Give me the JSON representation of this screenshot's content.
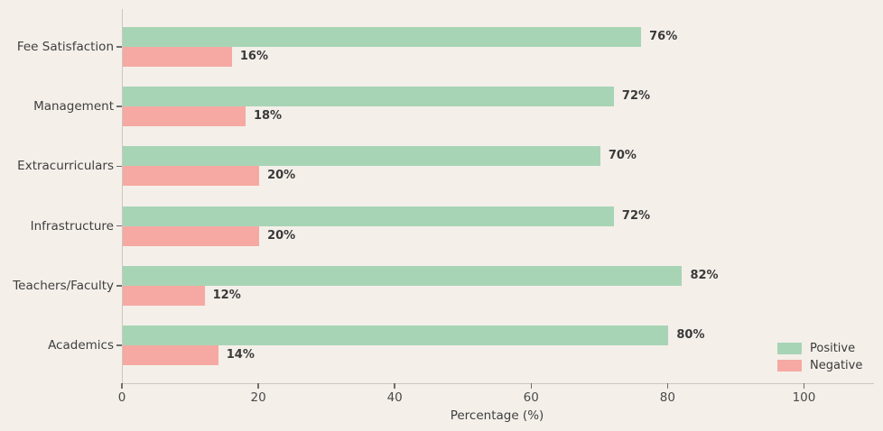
{
  "chart_data": {
    "type": "bar",
    "orientation": "horizontal",
    "title": "",
    "xlabel": "Percentage (%)",
    "ylabel": "",
    "categories": [
      "Fee Satisfaction",
      "Management",
      "Extracurriculars",
      "Infrastructure",
      "Teachers/Faculty",
      "Academics"
    ],
    "series": [
      {
        "name": "Positive",
        "color": "#a8d4b6",
        "values": [
          76,
          72,
          70,
          72,
          82,
          80
        ],
        "labels": [
          "76%",
          "72%",
          "70%",
          "72%",
          "82%",
          "80%"
        ]
      },
      {
        "name": "Negative",
        "color": "#f5a9a2",
        "values": [
          16,
          18,
          20,
          20,
          12,
          14
        ],
        "labels": [
          "16%",
          "18%",
          "20%",
          "20%",
          "12%",
          "14%"
        ]
      }
    ],
    "xticks": [
      "0",
      "20",
      "40",
      "60",
      "80",
      "100"
    ],
    "xtick_values": [
      0,
      20,
      40,
      60,
      80,
      100
    ],
    "xlim": [
      0,
      110
    ],
    "grid": false,
    "legend_position": "lower right",
    "background_color": "#f4efe9",
    "axis_color": "#ccc7c0",
    "text_color": "#3f3f3f"
  }
}
